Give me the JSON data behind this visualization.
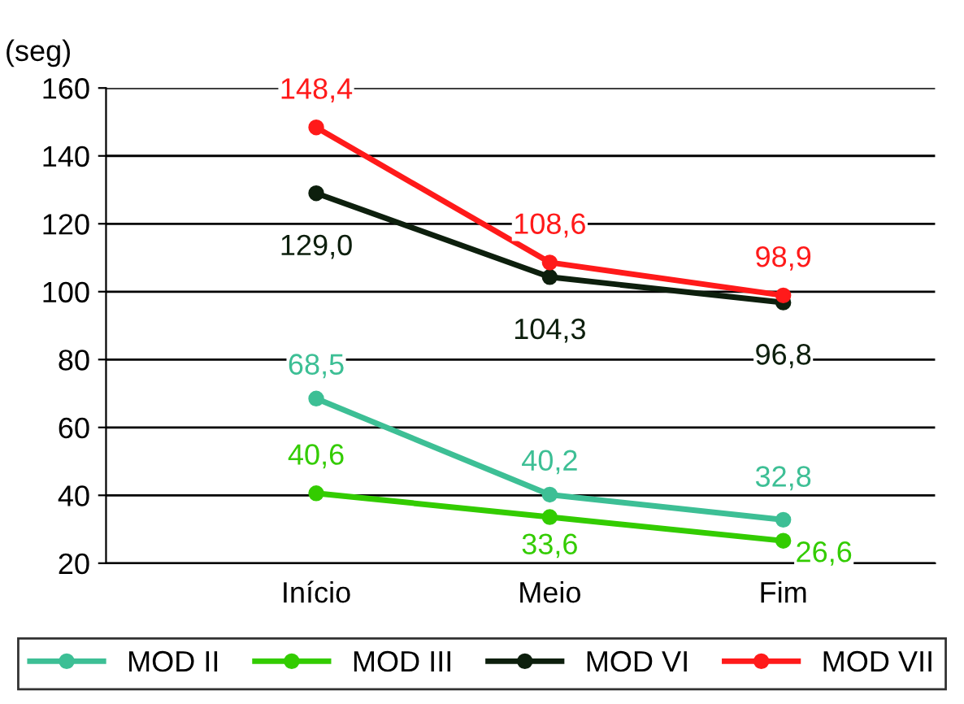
{
  "chart_data": {
    "type": "line",
    "ylabel": "(seg)",
    "categories": [
      "Início",
      "Meio",
      "Fim"
    ],
    "series": [
      {
        "name": "MOD II",
        "color": "#3dbf95",
        "values": [
          68.5,
          40.2,
          32.8
        ],
        "value_labels": [
          "68,5",
          "40,2",
          "32,8"
        ]
      },
      {
        "name": "MOD III",
        "color": "#33cc00",
        "values": [
          40.6,
          33.6,
          26.6
        ],
        "value_labels": [
          "40,6",
          "33,6",
          "26,6"
        ]
      },
      {
        "name": "MOD VI",
        "color": "#0d1f0d",
        "values": [
          129.0,
          104.3,
          96.8
        ],
        "value_labels": [
          "129,0",
          "104,3",
          "96,8"
        ]
      },
      {
        "name": "MOD VII",
        "color": "#ff1a1a",
        "values": [
          148.4,
          108.6,
          98.9
        ],
        "value_labels": [
          "148,4",
          "108,6",
          "98,9"
        ]
      }
    ],
    "ylim": [
      20,
      160
    ],
    "yticks": [
      20,
      40,
      60,
      80,
      100,
      120,
      140,
      160
    ],
    "grid": "y",
    "legend": "bottom",
    "marker": "circle",
    "line_style": "solid"
  }
}
